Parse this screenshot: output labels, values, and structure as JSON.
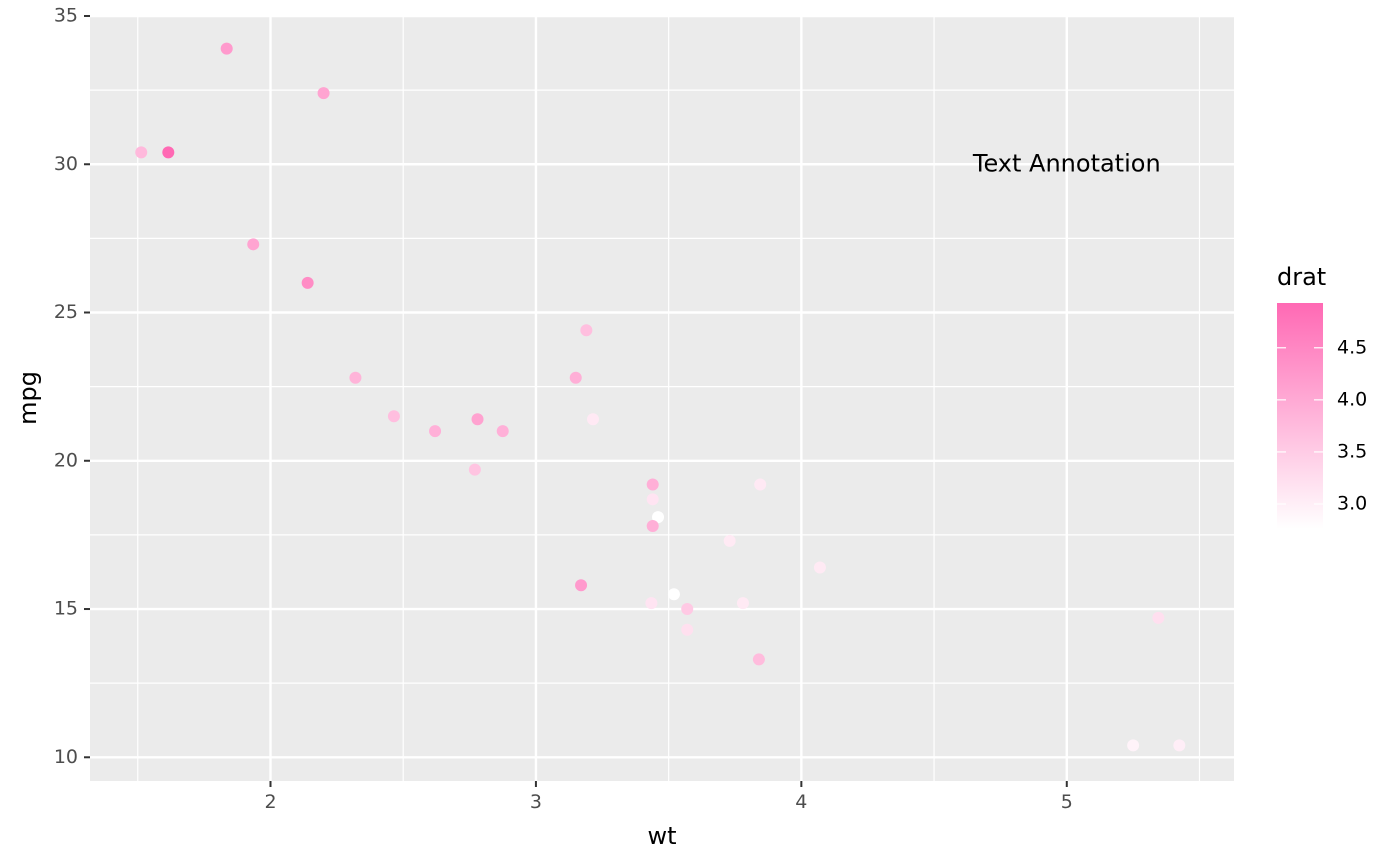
{
  "chart_data": {
    "type": "scatter",
    "xlabel": "wt",
    "ylabel": "mpg",
    "xlim": [
      1.32,
      5.63
    ],
    "ylim": [
      9.2,
      35.0
    ],
    "x_ticks": [
      2,
      3,
      4,
      5
    ],
    "x_tick_labels": [
      "2",
      "3",
      "4",
      "5"
    ],
    "y_ticks": [
      10,
      15,
      20,
      25,
      30,
      35
    ],
    "y_tick_labels": [
      "10",
      "15",
      "20",
      "25",
      "30",
      "35"
    ],
    "grid": true,
    "background_color": "#ebebeb",
    "annotation": {
      "text": "Text Annotation",
      "x": 5.0,
      "y": 30.0
    },
    "legend": {
      "title": "drat",
      "position": "right",
      "type": "colorbar",
      "range": [
        2.76,
        4.93
      ],
      "low_color": "#ffffff",
      "high_color": "#ff69b4",
      "breaks": [
        3.0,
        3.5,
        4.0,
        4.5
      ],
      "break_labels": [
        "3.0",
        "3.5",
        "4.0",
        "4.5"
      ]
    },
    "points": [
      {
        "wt": 2.62,
        "mpg": 21.0,
        "drat": 3.9
      },
      {
        "wt": 2.875,
        "mpg": 21.0,
        "drat": 3.9
      },
      {
        "wt": 2.32,
        "mpg": 22.8,
        "drat": 3.85
      },
      {
        "wt": 3.215,
        "mpg": 21.4,
        "drat": 3.08
      },
      {
        "wt": 3.44,
        "mpg": 18.7,
        "drat": 3.15
      },
      {
        "wt": 3.46,
        "mpg": 18.1,
        "drat": 2.76
      },
      {
        "wt": 3.57,
        "mpg": 14.3,
        "drat": 3.21
      },
      {
        "wt": 3.19,
        "mpg": 24.4,
        "drat": 3.69
      },
      {
        "wt": 3.15,
        "mpg": 22.8,
        "drat": 3.92
      },
      {
        "wt": 3.44,
        "mpg": 19.2,
        "drat": 3.92
      },
      {
        "wt": 3.44,
        "mpg": 17.8,
        "drat": 3.92
      },
      {
        "wt": 4.07,
        "mpg": 16.4,
        "drat": 3.07
      },
      {
        "wt": 3.73,
        "mpg": 17.3,
        "drat": 3.07
      },
      {
        "wt": 3.78,
        "mpg": 15.2,
        "drat": 3.07
      },
      {
        "wt": 5.25,
        "mpg": 10.4,
        "drat": 2.93
      },
      {
        "wt": 5.424,
        "mpg": 10.4,
        "drat": 3.0
      },
      {
        "wt": 5.345,
        "mpg": 14.7,
        "drat": 3.23
      },
      {
        "wt": 2.2,
        "mpg": 32.4,
        "drat": 4.08
      },
      {
        "wt": 1.615,
        "mpg": 30.4,
        "drat": 4.93
      },
      {
        "wt": 1.835,
        "mpg": 33.9,
        "drat": 4.22
      },
      {
        "wt": 2.465,
        "mpg": 21.5,
        "drat": 3.7
      },
      {
        "wt": 3.52,
        "mpg": 15.5,
        "drat": 2.76
      },
      {
        "wt": 3.435,
        "mpg": 15.2,
        "drat": 3.15
      },
      {
        "wt": 3.84,
        "mpg": 13.3,
        "drat": 3.73
      },
      {
        "wt": 3.845,
        "mpg": 19.2,
        "drat": 3.08
      },
      {
        "wt": 1.935,
        "mpg": 27.3,
        "drat": 4.08
      },
      {
        "wt": 2.14,
        "mpg": 26.0,
        "drat": 4.43
      },
      {
        "wt": 1.513,
        "mpg": 30.4,
        "drat": 3.77
      },
      {
        "wt": 3.17,
        "mpg": 15.8,
        "drat": 4.22
      },
      {
        "wt": 2.77,
        "mpg": 19.7,
        "drat": 3.62
      },
      {
        "wt": 3.57,
        "mpg": 15.0,
        "drat": 3.54
      },
      {
        "wt": 2.78,
        "mpg": 21.4,
        "drat": 4.11
      }
    ]
  }
}
